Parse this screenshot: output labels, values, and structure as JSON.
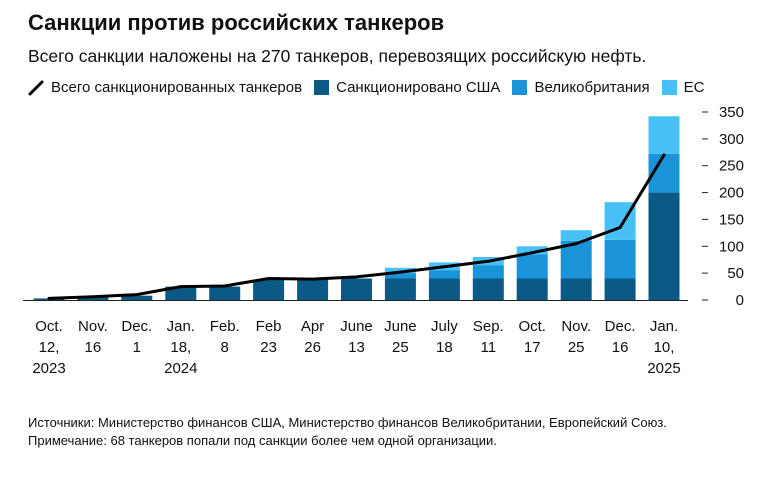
{
  "title": "Санкции против российских танкеров",
  "subtitle": "Всего санкции наложены на 270 танкеров, перевозящих российскую нефть.",
  "legend": {
    "total": "Всего санкционированных танкеров",
    "us": "Санкционировано США",
    "uk": "Великобритания",
    "eu": "ЕС"
  },
  "colors": {
    "us": "#0b5a85",
    "uk": "#1a93d9",
    "eu": "#47c1f5",
    "total": "#000000"
  },
  "chart_data": {
    "type": "bar",
    "stacked": true,
    "categories": [
      [
        "Oct.",
        "12,",
        "2023"
      ],
      [
        "Nov.",
        "16"
      ],
      [
        "Dec.",
        "1"
      ],
      [
        "Jan.",
        "18,",
        "2024"
      ],
      [
        "Feb.",
        "8"
      ],
      [
        "Feb",
        "23"
      ],
      [
        "Apr",
        "26"
      ],
      [
        "June",
        "13"
      ],
      [
        "June",
        "25"
      ],
      [
        "July",
        "18"
      ],
      [
        "Sep.",
        "11"
      ],
      [
        "Oct.",
        "17"
      ],
      [
        "Nov.",
        "25"
      ],
      [
        "Dec.",
        "16"
      ],
      [
        "Jan.",
        "10,",
        "2025"
      ]
    ],
    "series": [
      {
        "name": "Санкционировано США",
        "key": "us",
        "values": [
          3,
          5,
          8,
          25,
          25,
          38,
          38,
          40,
          40,
          40,
          40,
          40,
          40,
          40,
          200
        ]
      },
      {
        "name": "Великобритания",
        "key": "uk",
        "values": [
          0,
          0,
          0,
          0,
          0,
          0,
          0,
          0,
          10,
          15,
          25,
          45,
          70,
          72,
          72
        ]
      },
      {
        "name": "ЕС",
        "key": "eu",
        "values": [
          0,
          0,
          0,
          0,
          0,
          0,
          0,
          0,
          10,
          15,
          15,
          15,
          20,
          70,
          70
        ]
      }
    ],
    "total_line": {
      "name": "Всего санкционированных танкеров",
      "values": [
        3,
        6,
        10,
        25,
        26,
        40,
        39,
        43,
        52,
        62,
        72,
        88,
        105,
        135,
        270
      ]
    },
    "ylim": [
      0,
      350
    ],
    "yticks": [
      0,
      50,
      100,
      150,
      200,
      250,
      300,
      350
    ],
    "y_axis_side": "right",
    "grid": false,
    "legend_position": "top"
  },
  "footnotes": {
    "sources": "Источники: Министерство финансов США, Министерство финансов Великобритании, Европейский Союз.",
    "note": "Примечание: 68 танкеров попали под санкции более чем одной организации."
  }
}
